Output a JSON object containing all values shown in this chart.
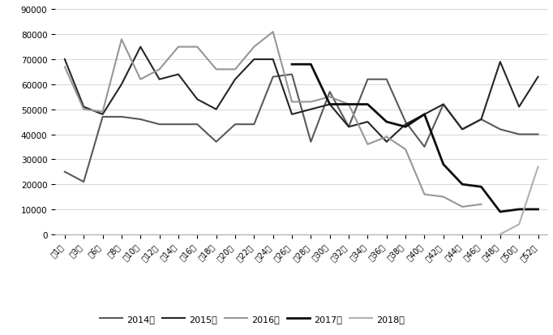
{
  "weeks": [
    "第1周",
    "第3周",
    "第6周",
    "第8周",
    "第10周",
    "第12周",
    "第14周",
    "第16周",
    "第18周",
    "第20周",
    "第22周",
    "第24周",
    "第26周",
    "第28周",
    "第30周",
    "第32周",
    "第34周",
    "第36周",
    "第38周",
    "第40周",
    "第42周",
    "第44周",
    "第46周",
    "第48周",
    "第50周",
    "第52周"
  ],
  "y2014": [
    25000,
    21000,
    47000,
    47000,
    46000,
    44000,
    44000,
    44000,
    37000,
    44000,
    44000,
    63000,
    64000,
    37000,
    57000,
    43000,
    62000,
    62000,
    45000,
    35000,
    52000,
    42000,
    46000,
    42000,
    40000,
    40000
  ],
  "y2015": [
    70000,
    51000,
    48000,
    60000,
    75000,
    62000,
    64000,
    54000,
    50000,
    62000,
    70000,
    70000,
    48000,
    50000,
    52000,
    43000,
    45000,
    37000,
    44000,
    48000,
    52000,
    42000,
    46000,
    69000,
    51000,
    63000
  ],
  "y2016": [
    67000,
    50000,
    49000,
    78000,
    62000,
    66000,
    75000,
    75000,
    66000,
    66000,
    75000,
    81000,
    53000,
    53000,
    55000,
    52000,
    36000,
    39000,
    34000,
    16000,
    15000,
    11000,
    12000,
    null,
    null,
    null
  ],
  "y2017": [
    null,
    null,
    null,
    null,
    null,
    null,
    null,
    null,
    null,
    null,
    null,
    null,
    68000,
    68000,
    52000,
    52000,
    52000,
    45000,
    43000,
    48000,
    28000,
    20000,
    19000,
    9000,
    10000,
    10000
  ],
  "y2018": [
    null,
    null,
    null,
    null,
    null,
    null,
    null,
    null,
    null,
    null,
    null,
    null,
    null,
    null,
    null,
    null,
    null,
    null,
    null,
    null,
    null,
    null,
    null,
    0,
    4000,
    27000
  ],
  "line_styles": {
    "2014": {
      "color": "#595959",
      "lw": 1.5
    },
    "2015": {
      "color": "#262626",
      "lw": 1.5
    },
    "2016": {
      "color": "#969696",
      "lw": 1.5
    },
    "2017": {
      "color": "#0d0d0d",
      "lw": 2.0
    },
    "2018": {
      "color": "#b0b0b0",
      "lw": 1.5
    }
  },
  "legend_labels": [
    "2014年",
    "2015年",
    "2016年",
    "2017年",
    "2018年"
  ],
  "ylim": [
    0,
    90000
  ],
  "yticks": [
    0,
    10000,
    20000,
    30000,
    40000,
    50000,
    60000,
    70000,
    80000,
    90000
  ]
}
